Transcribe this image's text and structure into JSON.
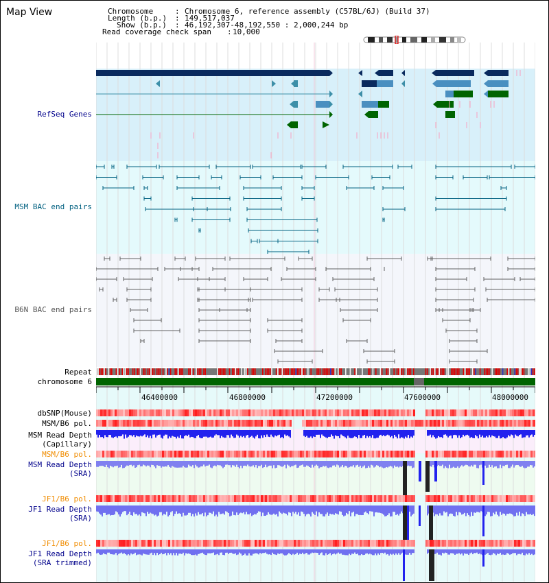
{
  "window": {
    "title": "Map View"
  },
  "header": {
    "chromosome_key": "Chromosome",
    "chromosome_val": "Chromosome 6, reference assembly (C57BL/6J) (Build 37)",
    "length_key": "Length (b.p.)",
    "length_val": "149,517,037",
    "show_key": "Show (b.p.)",
    "show_val": "46,192,307-48,192,550 : 2,000,244 bp",
    "coverage_key": "Read coverage check span",
    "coverage_val": "10,000"
  },
  "tracks": {
    "refseq": "RefSeq Genes",
    "msm_bac": "MSM BAC end pairs",
    "b6n_bac": "B6N BAC end pairs",
    "repeat": "Repeat",
    "chromosome": "chromosome 6",
    "dbsnp": "dbSNP(Mouse)",
    "msm_b6_pol_1": "MSM/B6 pol.",
    "msm_read_depth_cap_1": "MSM Read Depth",
    "msm_read_depth_cap_2": "(Capillary)",
    "msm_b6_pol_2": "MSM/B6 pol.",
    "msm_read_depth_sra_1": "MSM Read Depth",
    "msm_read_depth_sra_2": "(SRA)",
    "jf1_b6_pol_1": "JF1/B6 pol.",
    "jf1_read_depth_sra_1": "JF1 Read Depth",
    "jf1_read_depth_sra_2": "(SRA)",
    "jf1_b6_pol_2": "JF1/B6 pol.",
    "jf1_read_depth_trim_1": "JF1 Read Depth",
    "jf1_read_depth_trim_2": "(SRA trimmed)"
  },
  "axis": {
    "ticks": [
      "46400000",
      "46800000",
      "47200000",
      "47600000",
      "48000000"
    ]
  },
  "colors": {
    "refseq_bg": "#d8f0fa",
    "msm_bg": "#e4fafc",
    "axis_bg": "#e6fafa",
    "gene_navy": "#0a2a5e",
    "gene_teal": "#3d8fa8",
    "gene_green": "#006400",
    "bac_teal": "#006080",
    "bac_gray": "#606060",
    "depth_blue": "#2222ee",
    "depth_light": "#8080f0",
    "pol_red": "#e03030"
  }
}
